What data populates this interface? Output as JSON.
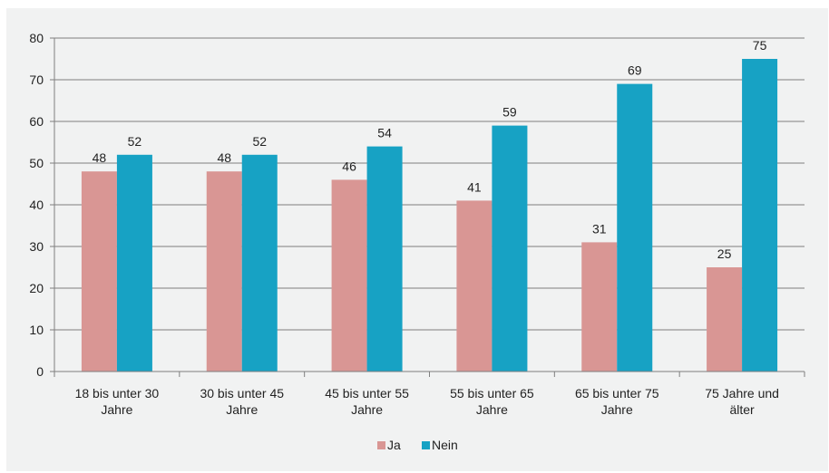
{
  "chart_data": {
    "type": "bar",
    "title": "",
    "xlabel": "",
    "ylabel": "",
    "ylim": [
      0,
      80
    ],
    "yticks": [
      0,
      10,
      20,
      30,
      40,
      50,
      60,
      70,
      80
    ],
    "grid": true,
    "legend_position": "bottom",
    "categories": [
      [
        "18 bis unter 30",
        "Jahre"
      ],
      [
        "30 bis unter 45",
        "Jahre"
      ],
      [
        "45 bis unter 55",
        "Jahre"
      ],
      [
        "55 bis unter 65",
        "Jahre"
      ],
      [
        "65 bis unter 75",
        "Jahre"
      ],
      [
        "75 Jahre und",
        "älter"
      ]
    ],
    "series": [
      {
        "name": "Ja",
        "color": "#d99694",
        "values": [
          48,
          48,
          46,
          41,
          31,
          25
        ]
      },
      {
        "name": "Nein",
        "color": "#17a2c4",
        "values": [
          52,
          52,
          54,
          59,
          69,
          75
        ]
      }
    ]
  }
}
